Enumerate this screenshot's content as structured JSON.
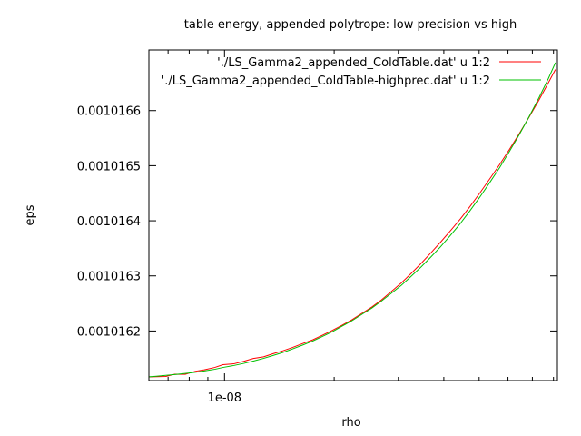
{
  "chart_data": {
    "type": "line",
    "title": "table energy, appended polytrope: low precision vs high",
    "xlabel": "rho",
    "ylabel": "eps",
    "x_scale": "log",
    "xlim": [
      6.2e-09,
      8.2e-08
    ],
    "ylim": [
      0.00101611,
      0.00101671
    ],
    "x_tick_labels": [
      {
        "value": 1e-08,
        "label": "1e-08"
      }
    ],
    "x_minor_ticks": [
      2e-08,
      3e-08,
      4e-08,
      5e-08,
      6e-08,
      7e-08,
      8e-08
    ],
    "y_ticks": [
      {
        "value": 0.0010162,
        "label": "0.0010162"
      },
      {
        "value": 0.0010163,
        "label": "0.0010163"
      },
      {
        "value": 0.0010164,
        "label": "0.0010164"
      },
      {
        "value": 0.0010165,
        "label": "0.0010165"
      },
      {
        "value": 0.0010166,
        "label": "0.0010166"
      }
    ],
    "grid": false,
    "legend_position": "top-right",
    "series": [
      {
        "name": "'./LS_Gamma2_appended_ColdTable.dat' u 1:2",
        "color": "#ff0000",
        "x": [
          6.2e-09,
          6.5e-09,
          6.9e-09,
          7.3e-09,
          7.8e-09,
          8.3e-09,
          8.8e-09,
          9.4e-09,
          9.9e-09,
          1.06e-08,
          1.13e-08,
          1.2e-08,
          1.28e-08,
          1.36e-08,
          1.45e-08,
          1.54e-08,
          1.64e-08,
          1.75e-08,
          1.86e-08,
          1.98e-08,
          2.1e-08,
          2.24e-08,
          2.38e-08,
          2.54e-08,
          2.7e-08,
          2.87e-08,
          3.06e-08,
          3.25e-08,
          3.46e-08,
          3.68e-08,
          3.92e-08,
          4.17e-08,
          4.44e-08,
          4.72e-08,
          5.02e-08,
          5.34e-08,
          5.69e-08,
          6.05e-08,
          6.44e-08,
          6.85e-08,
          7.29e-08,
          7.75e-08,
          8.1e-08
        ],
        "y": [
          0.0010161166,
          0.001016117,
          0.0010161175,
          0.0010161216,
          0.0010161214,
          0.0010161268,
          0.0010161296,
          0.0010161338,
          0.0010161388,
          0.0010161404,
          0.001016145,
          0.0010161501,
          0.001016153,
          0.0010161588,
          0.0010161643,
          0.0010161703,
          0.0010161773,
          0.0010161842,
          0.0010161925,
          0.0010162014,
          0.0010162103,
          0.0010162206,
          0.0010162318,
          0.0010162436,
          0.0010162567,
          0.0010162715,
          0.0010162874,
          0.0010163041,
          0.0010163222,
          0.0010163413,
          0.0010163614,
          0.0010163819,
          0.0010164033,
          0.001016426,
          0.0010164502,
          0.0010164755,
          0.0010165019,
          0.0010165291,
          0.001016558,
          0.0010165877,
          0.0010166185,
          0.0010166508,
          0.0010166745
        ]
      },
      {
        "name": "'./LS_Gamma2_appended_ColdTable-highprec.dat' u 1:2",
        "color": "#00c000",
        "x": [
          6.2e-09,
          6.5e-09,
          6.9e-09,
          7.3e-09,
          7.8e-09,
          8.3e-09,
          8.8e-09,
          9.4e-09,
          9.9e-09,
          1.06e-08,
          1.13e-08,
          1.2e-08,
          1.28e-08,
          1.36e-08,
          1.45e-08,
          1.54e-08,
          1.64e-08,
          1.75e-08,
          1.86e-08,
          1.98e-08,
          2.1e-08,
          2.24e-08,
          2.38e-08,
          2.54e-08,
          2.7e-08,
          2.87e-08,
          3.06e-08,
          3.25e-08,
          3.46e-08,
          3.68e-08,
          3.92e-08,
          4.17e-08,
          4.44e-08,
          4.72e-08,
          5.02e-08,
          5.34e-08,
          5.69e-08,
          6.05e-08,
          6.44e-08,
          6.85e-08,
          7.29e-08,
          7.75e-08,
          8.1e-08
        ],
        "y": [
          0.0010161168,
          0.0010161178,
          0.0010161194,
          0.001016121,
          0.0010161229,
          0.001016125,
          0.0010161276,
          0.0010161305,
          0.0010161338,
          0.0010161373,
          0.0010161412,
          0.0010161455,
          0.0010161503,
          0.0010161556,
          0.0010161613,
          0.0010161676,
          0.0010161745,
          0.001016182,
          0.0010161902,
          0.001016199,
          0.0010162085,
          0.0010162188,
          0.0010162299,
          0.0010162418,
          0.0010162546,
          0.0010162684,
          0.0010162831,
          0.001016299,
          0.0010163158,
          0.0010163338,
          0.001016353,
          0.0010163734,
          0.0010163951,
          0.0010164183,
          0.0010164428,
          0.0010164688,
          0.0010164963,
          0.0010165254,
          0.0010165561,
          0.0010165885,
          0.0010166226,
          0.0010166585,
          0.001016687
        ]
      }
    ]
  }
}
